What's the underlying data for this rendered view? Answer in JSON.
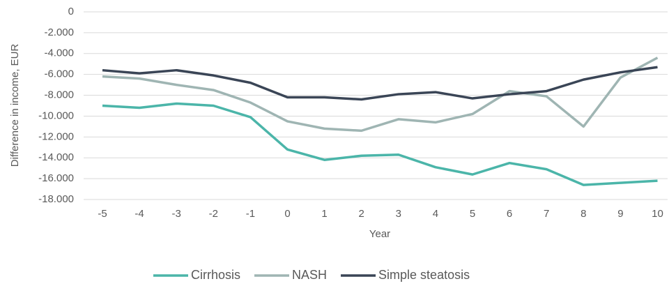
{
  "chart_data": {
    "type": "line",
    "categories": [
      "-5",
      "-4",
      "-3",
      "-2",
      "-1",
      "0",
      "1",
      "2",
      "3",
      "4",
      "5",
      "6",
      "7",
      "8",
      "9",
      "10"
    ],
    "series": [
      {
        "name": "Cirrhosis",
        "color": "#4bb5a9",
        "values": [
          -9000,
          -9200,
          -8800,
          -9000,
          -10100,
          -13200,
          -14200,
          -13800,
          -13700,
          -14900,
          -15600,
          -14500,
          -15100,
          -16600,
          -16400,
          -16200
        ]
      },
      {
        "name": "NASH",
        "color": "#9fb5b3",
        "values": [
          -6200,
          -6400,
          -7000,
          -7500,
          -8700,
          -10500,
          -11200,
          -11400,
          -10300,
          -10600,
          -9800,
          -7600,
          -8100,
          -11000,
          -6300,
          -4400
        ]
      },
      {
        "name": "Simple steatosis",
        "color": "#3a4556",
        "values": [
          -5600,
          -5900,
          -5600,
          -6100,
          -6800,
          -8200,
          -8200,
          -8400,
          -7900,
          -7700,
          -8300,
          -7900,
          -7600,
          -6500,
          -5800,
          -5300
        ]
      }
    ],
    "xlabel": "Year",
    "ylabel": "Difference in income, EUR",
    "ylim": [
      -18000,
      0
    ],
    "yticks": [
      0,
      {
        "value": -2000,
        "label": "-2.000"
      },
      {
        "value": -4000,
        "label": "-4.000"
      },
      {
        "value": -6000,
        "label": "-6.000"
      },
      {
        "value": -8000,
        "label": "-8.000"
      },
      {
        "value": -10000,
        "label": "-10.000"
      },
      {
        "value": -12000,
        "label": "-12.000"
      },
      {
        "value": -14000,
        "label": "-14.000"
      },
      {
        "value": -16000,
        "label": "-16.000"
      },
      {
        "value": -18000,
        "label": "-18.000"
      }
    ],
    "grid": true,
    "legend": "bottom"
  }
}
